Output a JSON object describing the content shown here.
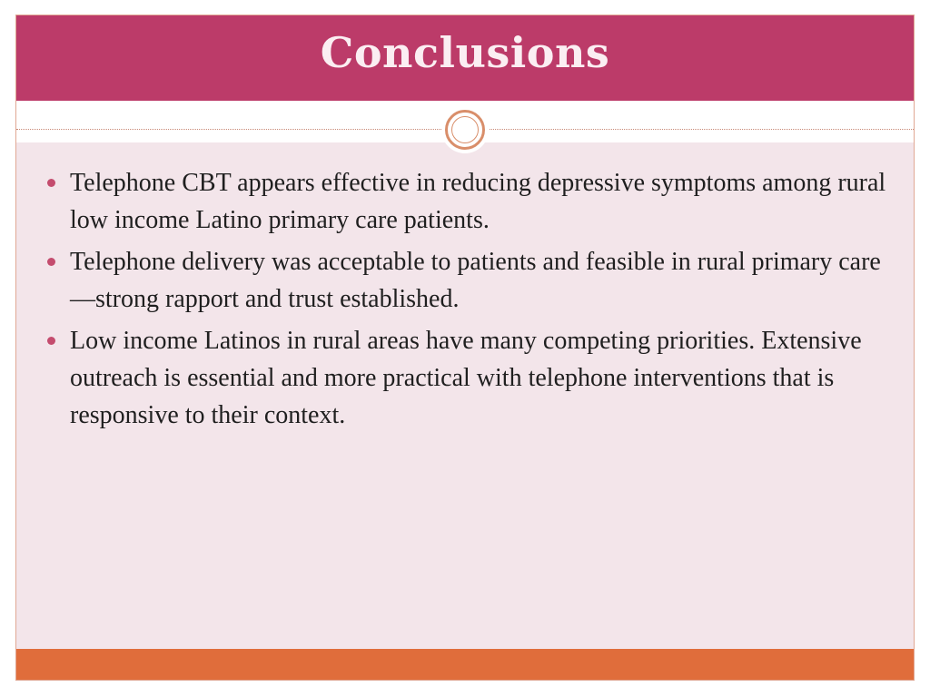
{
  "slide": {
    "title": "Conclusions",
    "bullets": [
      "Telephone CBT appears effective in reducing depressive symptoms among rural low income Latino primary care patients.",
      "Telephone delivery was acceptable to patients and feasible in rural primary care—strong rapport and trust established.",
      "Low income Latinos in rural areas have many competing priorities. Extensive outreach is essential and more practical with telephone interventions that is responsive to their context."
    ]
  },
  "colors": {
    "title_bar": "#bc3b69",
    "background": "#f3e5ea",
    "footer_bar": "#e06d3b",
    "ornament": "#d98e6a",
    "bullet": "#c44c6e"
  },
  "icons": {
    "ornament": "circle-ornament-icon",
    "bullet": "bullet-dot-icon"
  }
}
